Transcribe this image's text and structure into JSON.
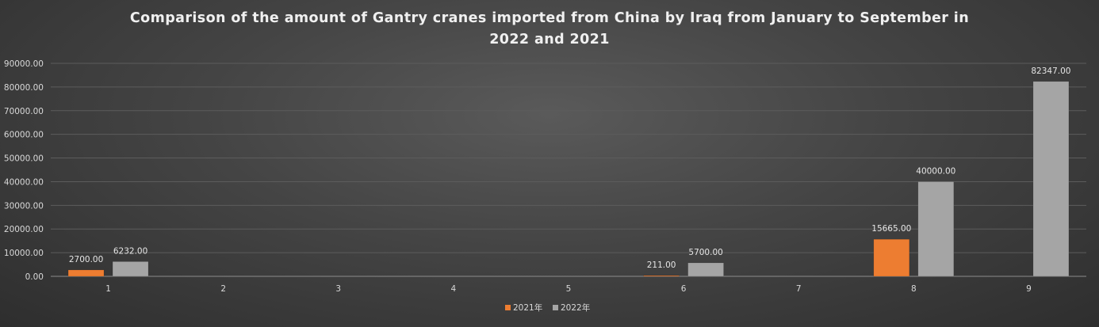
{
  "chart_data": {
    "type": "bar",
    "title_lines": [
      "Comparison of the amount of Gantry cranes imported from China by Iraq from January to September in",
      "2022 and 2021"
    ],
    "categories": [
      "1",
      "2",
      "3",
      "4",
      "5",
      "6",
      "7",
      "8",
      "9"
    ],
    "ylim": [
      0,
      90000
    ],
    "ytick_step": 10000,
    "ytick_labels": [
      "0.00",
      "10000.00",
      "20000.00",
      "30000.00",
      "40000.00",
      "50000.00",
      "60000.00",
      "70000.00",
      "80000.00",
      "90000.00"
    ],
    "grid": true,
    "legend_position": "bottom",
    "series": [
      {
        "name": "2021年",
        "color": "#ed7d31",
        "values": [
          2700,
          null,
          null,
          null,
          null,
          211,
          null,
          15665,
          null
        ],
        "labels": [
          "2700.00",
          "",
          "",
          "",
          "",
          "211.00",
          "",
          "15665.00",
          ""
        ]
      },
      {
        "name": "2022年",
        "color": "#a5a5a5",
        "values": [
          6232,
          null,
          null,
          null,
          null,
          5700,
          null,
          40000,
          82347
        ],
        "labels": [
          "6232.00",
          "",
          "",
          "",
          "",
          "5700.00",
          "",
          "40000.00",
          "82347.00"
        ]
      }
    ]
  }
}
